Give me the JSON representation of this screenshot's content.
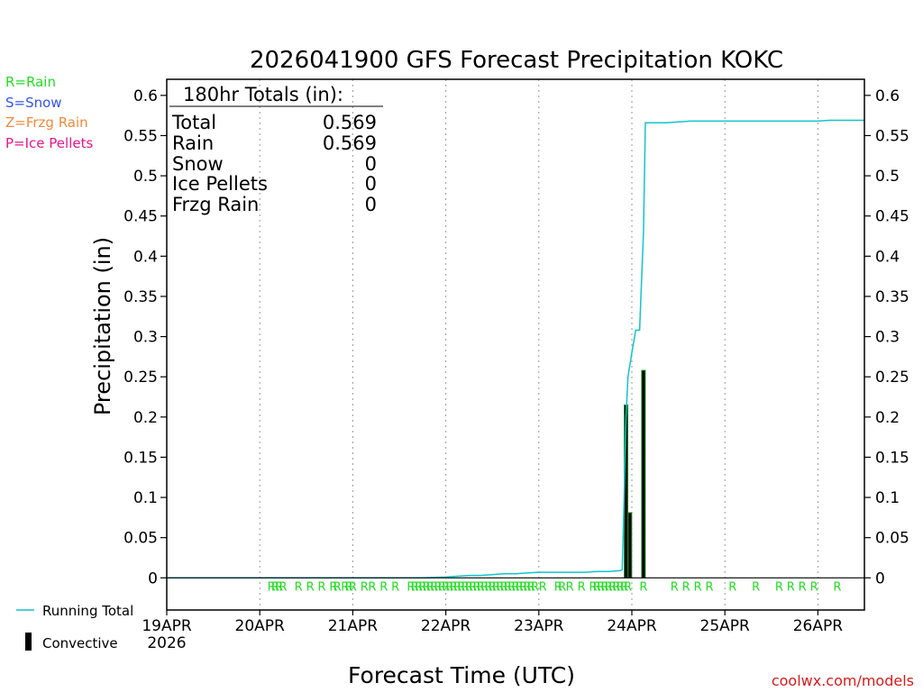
{
  "colors": {
    "rain": "#22dd22",
    "snow": "#3355ee",
    "frzg_rain": "#f08a3c",
    "ice_pellets": "#e8168c",
    "running_total": "#11c4cc",
    "convective_fill": "#000000",
    "convective_edge": "#1a8a1a",
    "credit": "#d81b1b"
  },
  "header": {
    "title": "2026041900 GFS Forecast Precipitation KOKC"
  },
  "type_legend": [
    {
      "label": "R=Rain",
      "color": "#22dd22"
    },
    {
      "label": "S=Snow",
      "color": "#3355ee"
    },
    {
      "label": "Z=Frzg Rain",
      "color": "#f08a3c"
    },
    {
      "label": "P=Ice Pellets",
      "color": "#e8168c"
    }
  ],
  "totals_box": {
    "heading": "180hr Totals (in):",
    "rows": [
      {
        "label": "Total",
        "value": "0.569"
      },
      {
        "label": "Rain",
        "value": "0.569"
      },
      {
        "label": "Snow",
        "value": "0"
      },
      {
        "label": "Ice Pellets",
        "value": "0"
      },
      {
        "label": "Frzg Rain",
        "value": "0"
      }
    ]
  },
  "series_legend": {
    "running_total": "Running Total",
    "convective": "Convective"
  },
  "footer": {
    "credit": "coolwx.com/models"
  },
  "chart_data": {
    "type": "line",
    "title": "2026041900 GFS Forecast Precipitation KOKC",
    "xlabel": "Forecast Time (UTC)",
    "ylabel": "Precipitation (in)",
    "x_unit": "forecast hour",
    "xlim": [
      0,
      180
    ],
    "ylim": [
      -0.04,
      0.62
    ],
    "y_ticks": [
      0,
      0.05,
      0.1,
      0.15,
      0.2,
      0.25,
      0.3,
      0.35,
      0.4,
      0.45,
      0.5,
      0.55,
      0.6
    ],
    "y_tick_labels": [
      "0",
      "0.05",
      "0.1",
      "0.15",
      "0.2",
      "0.25",
      "0.3",
      "0.35",
      "0.4",
      "0.45",
      "0.5",
      "0.55",
      "0.6"
    ],
    "x_ticks": [
      {
        "hour": 0,
        "label": "19APR",
        "sublabel": "2026"
      },
      {
        "hour": 24,
        "label": "20APR"
      },
      {
        "hour": 48,
        "label": "21APR"
      },
      {
        "hour": 72,
        "label": "22APR"
      },
      {
        "hour": 96,
        "label": "23APR"
      },
      {
        "hour": 120,
        "label": "24APR"
      },
      {
        "hour": 144,
        "label": "25APR"
      },
      {
        "hour": 168,
        "label": "26APR"
      }
    ],
    "grid": "vertical dotted at day boundaries",
    "series": [
      {
        "name": "Running Total",
        "style": "line",
        "x": [
          0,
          66,
          72,
          75,
          78,
          81,
          84,
          87,
          90,
          93,
          96,
          99,
          102,
          108,
          111,
          114,
          117,
          117.5,
          118,
          118.5,
          119,
          120,
          121,
          121.5,
          122,
          123,
          123.5,
          129,
          132,
          135,
          168,
          171,
          180
        ],
        "y": [
          0,
          0,
          0.001,
          0.002,
          0.003,
          0.003,
          0.004,
          0.005,
          0.005,
          0.006,
          0.007,
          0.007,
          0.007,
          0.007,
          0.008,
          0.008,
          0.009,
          0.01,
          0.1,
          0.2,
          0.25,
          0.28,
          0.308,
          0.308,
          0.308,
          0.43,
          0.566,
          0.566,
          0.567,
          0.568,
          0.568,
          0.569,
          0.569
        ]
      },
      {
        "name": "Convective",
        "style": "bar",
        "x": [
          118.5,
          119.5,
          123
        ],
        "y": [
          0.215,
          0.081,
          0.258
        ]
      }
    ],
    "precip_type_marks": [
      {
        "label": "RRRR",
        "hours": [
          27,
          28,
          29,
          30
        ]
      },
      {
        "label": "R",
        "hours": [
          34
        ]
      },
      {
        "label": "R",
        "hours": [
          37
        ]
      },
      {
        "label": "R",
        "hours": [
          40
        ]
      },
      {
        "label": "RR",
        "hours": [
          43,
          44
        ]
      },
      {
        "label": "RRR",
        "hours": [
          46,
          47,
          48
        ]
      },
      {
        "label": "R",
        "hours": [
          51
        ]
      },
      {
        "label": "R",
        "hours": [
          53
        ]
      },
      {
        "label": "R",
        "hours": [
          56
        ]
      },
      {
        "label": "R",
        "hours": [
          59
        ]
      },
      {
        "label": "RRRRRRRRRRRRRRRRRRRRRRRRR",
        "hours": [
          63,
          64,
          65,
          66,
          67,
          68,
          69,
          70,
          71,
          72,
          73,
          74,
          75,
          76,
          77,
          78,
          79,
          80,
          81,
          82,
          83,
          84,
          85,
          86,
          87
        ]
      },
      {
        "label": "RRRRRRRR",
        "hours": [
          88,
          89,
          90,
          91,
          92,
          93,
          94,
          95
        ]
      },
      {
        "label": "R",
        "hours": [
          97
        ]
      },
      {
        "label": "RR",
        "hours": [
          101,
          102
        ]
      },
      {
        "label": "R",
        "hours": [
          104
        ]
      },
      {
        "label": "R",
        "hours": [
          107
        ]
      },
      {
        "label": "RRRRRRRRRR",
        "hours": [
          110,
          111,
          112,
          113,
          114,
          115,
          116,
          117,
          118,
          119
        ]
      },
      {
        "label": "R",
        "hours": [
          123
        ]
      },
      {
        "label": "R",
        "hours": [
          131
        ]
      },
      {
        "label": "RRR",
        "hours": [
          134,
          137,
          140
        ]
      },
      {
        "label": "R",
        "hours": [
          146
        ]
      },
      {
        "label": "R",
        "hours": [
          152
        ]
      },
      {
        "label": "RRRR",
        "hours": [
          158,
          161,
          164,
          167
        ]
      },
      {
        "label": "R",
        "hours": [
          173
        ]
      }
    ]
  }
}
